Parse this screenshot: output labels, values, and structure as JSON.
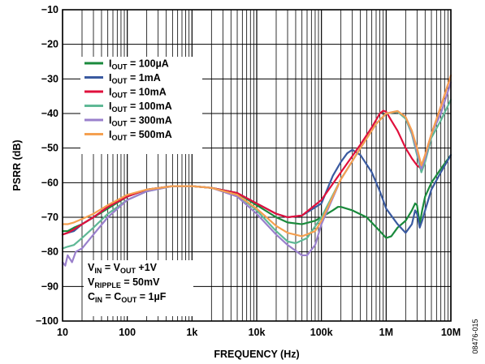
{
  "figure_id": "08476-015",
  "chart_data": {
    "type": "line",
    "xlabel": "FREQUENCY (Hz)",
    "ylabel": "PSRR (dB)",
    "xscale": "log",
    "xlim": [
      10,
      10000000
    ],
    "ylim": [
      -100,
      -10
    ],
    "grid": true,
    "x_ticks": [
      10,
      100,
      1000,
      10000,
      100000,
      1000000,
      10000000
    ],
    "x_tick_labels": [
      "10",
      "100",
      "1k",
      "10k",
      "100k",
      "1M",
      "10M"
    ],
    "y_ticks": [
      -100,
      -90,
      -80,
      -70,
      -60,
      -50,
      -40,
      -30,
      -20,
      -10
    ],
    "y_tick_labels": [
      "−100",
      "−90",
      "−80",
      "−70",
      "−60",
      "−50",
      "−40",
      "−30",
      "−20",
      "−10"
    ],
    "legend": {
      "position": "upper-left",
      "entries": [
        {
          "prefix": "I",
          "sub": "OUT",
          "suffix": " = 100µA",
          "color": "#1a8a3c"
        },
        {
          "prefix": "I",
          "sub": "OUT",
          "suffix": " = 1mA",
          "color": "#3a5aa0"
        },
        {
          "prefix": "I",
          "sub": "OUT",
          "suffix": " = 10mA",
          "color": "#e0103c"
        },
        {
          "prefix": "I",
          "sub": "OUT",
          "suffix": " = 100mA",
          "color": "#5fb896"
        },
        {
          "prefix": "I",
          "sub": "OUT",
          "suffix": " = 300mA",
          "color": "#9a80cc"
        },
        {
          "prefix": "I",
          "sub": "OUT",
          "suffix": " = 500mA",
          "color": "#f5a050"
        }
      ]
    },
    "conditions": [
      [
        {
          "t": "V"
        },
        {
          "t": "IN",
          "sub": true
        },
        {
          "t": " = V"
        },
        {
          "t": "OUT",
          "sub": true
        },
        {
          "t": " +1V"
        }
      ],
      [
        {
          "t": "V"
        },
        {
          "t": "RIPPLE",
          "sub": true
        },
        {
          "t": " = 50mV"
        }
      ],
      [
        {
          "t": "C"
        },
        {
          "t": "IN",
          "sub": true
        },
        {
          "t": " = C"
        },
        {
          "t": "OUT",
          "sub": true
        },
        {
          "t": " = 1µF"
        }
      ]
    ],
    "series": [
      {
        "name": "IOUT = 100µA",
        "color": "#1a8a3c",
        "x": [
          10,
          12,
          15,
          20,
          30,
          50,
          100,
          200,
          500,
          1000,
          2000,
          5000,
          10000,
          20000,
          30000,
          50000,
          80000,
          100000,
          150000,
          180000,
          200000,
          300000,
          500000,
          800000,
          1000000,
          1200000,
          1500000,
          2000000,
          2500000,
          2800000,
          3000000,
          3300000,
          3600000,
          4000000,
          5000000,
          7000000,
          10000000
        ],
        "y": [
          -74,
          -74,
          -73,
          -72,
          -70,
          -67.5,
          -64,
          -62,
          -61,
          -61,
          -61.5,
          -63,
          -66.5,
          -70,
          -71.5,
          -72,
          -71,
          -70,
          -68,
          -67,
          -67,
          -68,
          -70,
          -74,
          -76,
          -75.5,
          -73,
          -71,
          -68,
          -66,
          -66.5,
          -72,
          -68,
          -64,
          -60,
          -56,
          -52
        ]
      },
      {
        "name": "IOUT = 1mA",
        "color": "#3a5aa0",
        "x": [
          10,
          12,
          15,
          20,
          30,
          50,
          100,
          200,
          500,
          1000,
          2000,
          5000,
          10000,
          20000,
          30000,
          50000,
          100000,
          150000,
          200000,
          250000,
          300000,
          400000,
          600000,
          800000,
          1000000,
          1500000,
          2000000,
          2500000,
          2800000,
          3000000,
          3300000,
          3600000,
          4000000,
          5000000,
          7000000,
          10000000
        ],
        "y": [
          -75,
          -74.5,
          -74,
          -72,
          -70,
          -67,
          -64,
          -62,
          -61,
          -61,
          -61.5,
          -63,
          -66,
          -69,
          -70,
          -69.5,
          -66,
          -58,
          -54,
          -51.5,
          -50.5,
          -52,
          -57,
          -62.5,
          -67.5,
          -72,
          -74.5,
          -72,
          -68,
          -69,
          -73,
          -71,
          -68,
          -62,
          -57,
          -52
        ]
      },
      {
        "name": "IOUT = 10mA",
        "color": "#e0103c",
        "x": [
          10,
          12,
          15,
          20,
          30,
          50,
          100,
          200,
          500,
          1000,
          2000,
          5000,
          10000,
          20000,
          30000,
          50000,
          100000,
          200000,
          400000,
          600000,
          800000,
          900000,
          1000000,
          1200000,
          1500000,
          2000000,
          2500000,
          3000000,
          3500000,
          4000000,
          5000000,
          7000000,
          10000000
        ],
        "y": [
          -75,
          -74.5,
          -73.5,
          -72,
          -70,
          -67,
          -64,
          -62,
          -61,
          -61,
          -61.5,
          -63,
          -66,
          -69,
          -70,
          -69.5,
          -65,
          -57,
          -49,
          -44,
          -40,
          -39.2,
          -39.5,
          -42,
          -45,
          -50,
          -53,
          -55,
          -56,
          -52,
          -46,
          -38,
          -29
        ]
      },
      {
        "name": "IOUT = 100mA",
        "color": "#5fb896",
        "x": [
          10,
          12,
          15,
          20,
          30,
          50,
          100,
          200,
          500,
          1000,
          2000,
          5000,
          10000,
          20000,
          30000,
          40000,
          60000,
          100000,
          200000,
          400000,
          700000,
          1000000,
          1500000,
          2000000,
          2500000,
          3000000,
          3500000,
          4000000,
          5000000,
          7000000,
          10000000
        ],
        "y": [
          -79,
          -78.5,
          -78,
          -76,
          -73,
          -69,
          -65,
          -62.5,
          -61,
          -61,
          -61.5,
          -63.5,
          -68,
          -74,
          -77,
          -77.5,
          -76,
          -70,
          -59,
          -50,
          -43,
          -40,
          -39.5,
          -41.5,
          -46,
          -52,
          -57,
          -54,
          -47,
          -42,
          -36
        ]
      },
      {
        "name": "IOUT = 300mA",
        "color": "#9a80cc",
        "x": [
          10,
          11,
          12,
          14,
          16,
          20,
          30,
          50,
          100,
          200,
          500,
          1000,
          2000,
          5000,
          10000,
          20000,
          30000,
          50000,
          60000,
          80000,
          100000,
          200000,
          400000,
          700000,
          1000000,
          1500000,
          2000000,
          2500000,
          3000000,
          3500000,
          4000000,
          5000000,
          7000000,
          10000000
        ],
        "y": [
          -83,
          -84,
          -81,
          -83,
          -80,
          -79,
          -75,
          -70,
          -65,
          -62.5,
          -61,
          -61,
          -61.5,
          -64,
          -69,
          -75,
          -78,
          -81,
          -81,
          -78,
          -72,
          -59,
          -50,
          -43,
          -40,
          -39.3,
          -41,
          -45.5,
          -51,
          -56,
          -53,
          -46,
          -40,
          -31
        ]
      },
      {
        "name": "IOUT = 500mA",
        "color": "#f5a050",
        "x": [
          10,
          12,
          15,
          20,
          30,
          50,
          100,
          200,
          500,
          1000,
          2000,
          5000,
          10000,
          20000,
          30000,
          50000,
          80000,
          100000,
          200000,
          400000,
          700000,
          1000000,
          1500000,
          2000000,
          2500000,
          3000000,
          3500000,
          4000000,
          5000000,
          7000000,
          10000000
        ],
        "y": [
          -72,
          -72,
          -71.5,
          -70.5,
          -69,
          -66.5,
          -63.5,
          -62,
          -61,
          -61,
          -61.5,
          -63.5,
          -67.5,
          -72.5,
          -74.5,
          -75.5,
          -74,
          -71,
          -59,
          -50,
          -43,
          -40,
          -39.3,
          -41,
          -45,
          -50,
          -55,
          -52,
          -46,
          -38,
          -29
        ]
      }
    ]
  }
}
